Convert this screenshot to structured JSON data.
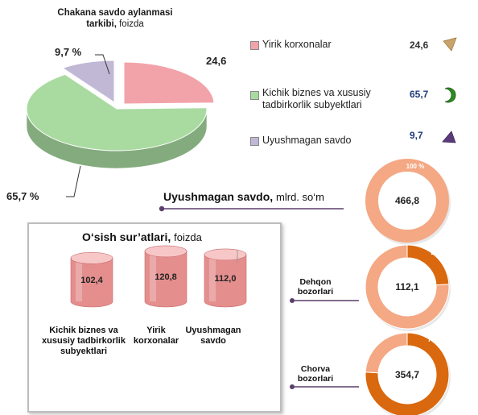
{
  "chart_data": [
    {
      "type": "pie",
      "title": "Chakana savdo aylanmasi tarkibi,",
      "subtitle": "foizda",
      "slices": [
        {
          "name": "Yirik korxonalar",
          "value": 24.6,
          "label": "24,6",
          "color": "#f2a3aa"
        },
        {
          "name": "Kichik biznes va xususiy tadbirkorlik subyektlari",
          "value": 65.7,
          "label": "65,7 %",
          "color": "#a9dba1"
        },
        {
          "name": "Uyushmagan savdo",
          "value": 9.7,
          "label": "9,7 %",
          "color": "#c1b8d6"
        }
      ],
      "legend": {
        "placement": "right",
        "items": [
          {
            "label": "Yirik korxonalar",
            "value_label": "24,6",
            "swatch": "#f2a3aa",
            "icon_color": "#c9a46a"
          },
          {
            "label": "Kichik biznes va xususiy tadbirkorlik subyektlari",
            "value_label": "65,7",
            "swatch": "#a9dba1",
            "icon_color": "#2e8b23"
          },
          {
            "label": "Uyushmagan savdo",
            "value_label": "9,7",
            "swatch": "#c1b8d6",
            "icon_color": "#5c3a7a"
          }
        ]
      }
    },
    {
      "type": "bar",
      "title": "O‘sish sur’atlari,",
      "subtitle": "foizda",
      "categories": [
        "Kichik biznes va xususiy tadbirkorlik subyektlari",
        "Yirik korxonalar",
        "Uyushmagan savdo"
      ],
      "values": [
        102.4,
        120.8,
        112.0
      ],
      "value_labels": [
        "102,4",
        "120,8",
        "112,0"
      ],
      "color": "#e58e8e"
    },
    {
      "type": "pie",
      "title": "Uyushmagan savdo,",
      "subtitle": "mlrd. so‘m",
      "donuts": [
        {
          "name": "",
          "total_label": "466,8",
          "slices": [
            {
              "value": 100,
              "label": "100 %",
              "color": "#f4a884"
            }
          ]
        },
        {
          "name": "Dehqon bozorlari",
          "total_label": "112,1",
          "slices": [
            {
              "value": 24.0,
              "label": "24,0 %",
              "color": "#d9680e"
            },
            {
              "value": 76.0,
              "label": "",
              "color": "#f4a884"
            }
          ]
        },
        {
          "name": "Chorva bozorlari",
          "total_label": "354,7",
          "slices": [
            {
              "value": 76.0,
              "label": "76,0 %",
              "color": "#d9680e"
            },
            {
              "value": 24.0,
              "label": "",
              "color": "#f4a884"
            }
          ]
        }
      ]
    }
  ]
}
